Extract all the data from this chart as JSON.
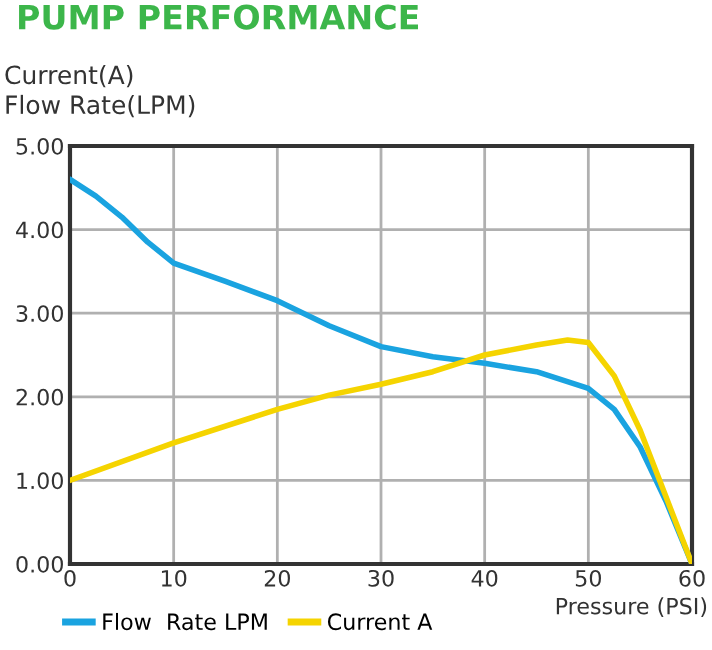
{
  "chart_data": {
    "type": "line",
    "title": "PUMP PERFORMANCE",
    "ylabel": "Current(A)\nFlow Rate(LPM)",
    "xlabel": "Pressure (PSI)",
    "series": [
      {
        "name": "Flow  Rate LPM",
        "color": "#1aa3e0",
        "x": [
          0,
          2.5,
          5,
          7.5,
          10,
          15,
          20,
          25,
          30,
          35,
          40,
          45,
          50,
          52.5,
          55,
          57.5,
          60
        ],
        "values": [
          4.6,
          4.4,
          4.15,
          3.85,
          3.6,
          3.38,
          3.15,
          2.85,
          2.6,
          2.48,
          2.4,
          2.3,
          2.1,
          1.85,
          1.4,
          0.75,
          0
        ]
      },
      {
        "name": "Current A",
        "color": "#f5d400",
        "x": [
          0,
          10,
          20,
          25,
          30,
          35,
          40,
          45,
          48,
          50,
          52.5,
          55,
          57.5,
          60
        ],
        "values": [
          1.0,
          1.45,
          1.85,
          2.02,
          2.15,
          2.3,
          2.5,
          2.62,
          2.68,
          2.65,
          2.25,
          1.6,
          0.8,
          0
        ]
      }
    ],
    "xlim": [
      0,
      60
    ],
    "xticks": [
      0,
      10,
      20,
      30,
      40,
      50,
      60
    ],
    "ylim": [
      0,
      5
    ],
    "yticks": [
      {
        "value": 0,
        "label": "0.00"
      },
      {
        "value": 1,
        "label": "1.00"
      },
      {
        "value": 2,
        "label": "2.00"
      },
      {
        "value": 3,
        "label": "3.00"
      },
      {
        "value": 4,
        "label": "4.00"
      },
      {
        "value": 5,
        "label": "5.00"
      }
    ],
    "grid": true,
    "legend": "bottom",
    "marker": "none",
    "line_style": "solid"
  }
}
